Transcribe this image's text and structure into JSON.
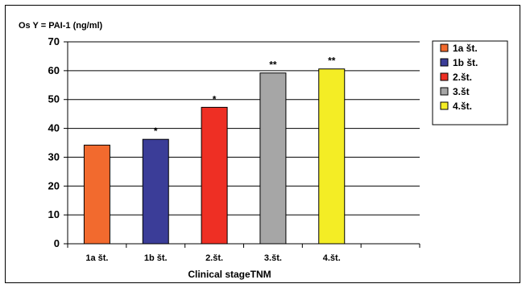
{
  "chart_data": {
    "type": "bar",
    "ylabel": "Os Y = PAI-1 (ng/ml)",
    "xlabel": "Clinical stageTNM",
    "categories": [
      "1a št.",
      "1b št.",
      "2.št.",
      "3.št.",
      "4.št."
    ],
    "values": [
      34.2,
      36.2,
      47.3,
      59.2,
      60.6
    ],
    "annotations": [
      "",
      "*",
      "*",
      "**",
      "**"
    ],
    "colors": [
      "#f26a2e",
      "#3b3d98",
      "#ee2f24",
      "#a6a6a6",
      "#f4ed25"
    ],
    "ylim": [
      0,
      70
    ],
    "yticks": [
      0,
      10,
      20,
      30,
      40,
      50,
      60,
      70
    ],
    "grid": true,
    "legend": {
      "position": "right",
      "entries": [
        "1a št.",
        "1b št.",
        "2.št.",
        "3.št",
        "4.št."
      ]
    }
  }
}
